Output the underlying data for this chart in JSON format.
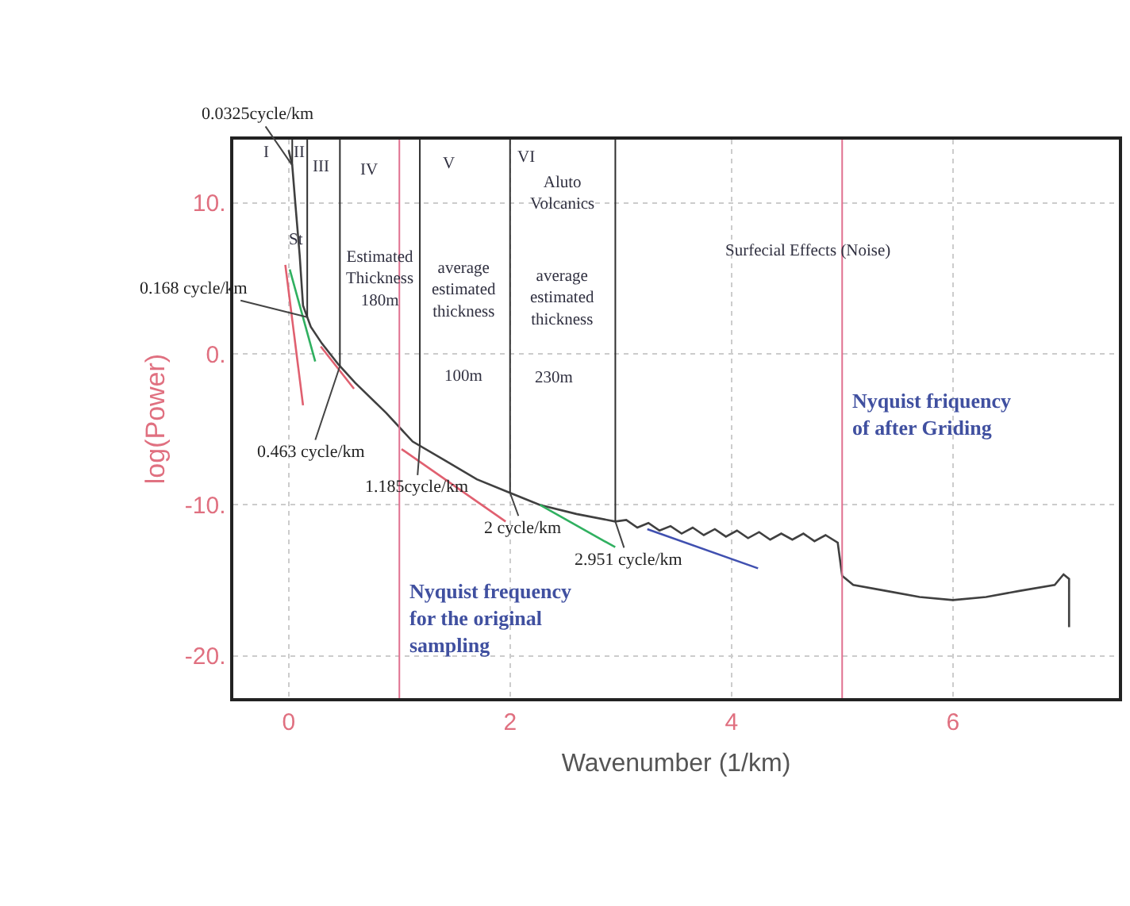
{
  "chart_data": {
    "type": "line",
    "xlabel": "Wavenumber (1/km)",
    "ylabel": "log(Power)",
    "xlim": [
      -0.5,
      7.5
    ],
    "ylim": [
      -22.8,
      14.2
    ],
    "xticks": [
      0,
      2,
      4,
      6
    ],
    "yticks": [
      {
        "value": -20,
        "label": "-20."
      },
      {
        "value": -10,
        "label": "-10."
      },
      {
        "value": 0,
        "label": "0."
      },
      {
        "value": 10,
        "label": "10."
      }
    ],
    "grid": true,
    "line_style": "solid",
    "series": [
      {
        "color": "#404040",
        "x": [
          0,
          0.0325,
          0.06,
          0.1,
          0.13,
          0.2,
          0.3,
          0.45,
          0.6,
          0.88,
          1.12,
          1.4,
          1.7,
          2.0,
          2.27,
          2.6,
          2.95,
          3.05,
          3.15,
          3.25,
          3.35,
          3.45,
          3.55,
          3.65,
          3.75,
          3.85,
          3.95,
          4.05,
          4.15,
          4.25,
          4.35,
          4.45,
          4.55,
          4.65,
          4.75,
          4.85,
          4.96,
          5.0,
          5.1,
          5.4,
          5.7,
          6.0,
          6.3,
          6.6,
          6.92,
          7.0,
          7.05,
          7.05
        ],
        "values": [
          13.5,
          12.5,
          10,
          6.5,
          3.2,
          1.8,
          0.7,
          -0.7,
          -1.9,
          -3.9,
          -5.8,
          -7,
          -8.3,
          -9.2,
          -10,
          -10.6,
          -11.1,
          -11,
          -11.5,
          -11.2,
          -11.7,
          -11.4,
          -11.9,
          -11.5,
          -12,
          -11.6,
          -12.1,
          -11.7,
          -12.2,
          -11.8,
          -12.3,
          -11.9,
          -12.3,
          -11.9,
          -12.4,
          -12,
          -12.5,
          -14.7,
          -15.3,
          -15.7,
          -16.1,
          -16.3,
          -16.1,
          -15.7,
          -15.3,
          -14.6,
          -14.9,
          -18.1
        ]
      },
      {
        "color": "#e06070",
        "x": [
          -0.03,
          0.13
        ],
        "values": [
          5.9,
          -3.4
        ]
      },
      {
        "color": "#30b060",
        "x": [
          0.01,
          0.24
        ],
        "values": [
          5.6,
          -0.5
        ]
      },
      {
        "color": "#e06070",
        "x": [
          0.29,
          0.59
        ],
        "values": [
          0.5,
          -2.3
        ]
      },
      {
        "color": "#e06070",
        "x": [
          1.02,
          1.96
        ],
        "values": [
          -6.3,
          -11.1
        ]
      },
      {
        "color": "#30b060",
        "x": [
          2.27,
          2.95
        ],
        "values": [
          -10,
          -12.8
        ]
      },
      {
        "color": "#4050b0",
        "x": [
          3.24,
          4.24
        ],
        "values": [
          -11.6,
          -14.2
        ]
      }
    ],
    "ref_lines": [
      {
        "axis": "x",
        "value": 0.0325,
        "label": "0.0325cycle/km",
        "color": "#303030"
      },
      {
        "axis": "x",
        "value": 0.168,
        "label": "0.168 cycle/km",
        "color": "#303030"
      },
      {
        "axis": "x",
        "value": 0.463,
        "label": "0.463 cycle/km",
        "color": "#303030"
      },
      {
        "axis": "x",
        "value": 1.185,
        "label": "1.185cycle/km",
        "color": "#303030"
      },
      {
        "axis": "x",
        "value": 2,
        "label": "2 cycle/km",
        "color": "#303030"
      },
      {
        "axis": "x",
        "value": 2.951,
        "label": "2.951 cycle/km",
        "color": "#303030"
      },
      {
        "axis": "x",
        "value": 1,
        "label": "Nyquist frequency\nfor the original\nsampling",
        "color": "#e07090"
      },
      {
        "axis": "x",
        "value": 5,
        "label": "Nyquist friquency\nof after Griding",
        "color": "#e07090"
      }
    ],
    "annotations": [
      "I",
      "II",
      "III",
      "IV",
      "V",
      "VI",
      "St",
      "Aluto\nVolcanics",
      "Surfecial Effects (Noise)",
      "Estimated\nThickness\n180m",
      "average\nestimated\nthickness",
      "100m",
      "average\nestimated\nthickness",
      "230m"
    ]
  }
}
